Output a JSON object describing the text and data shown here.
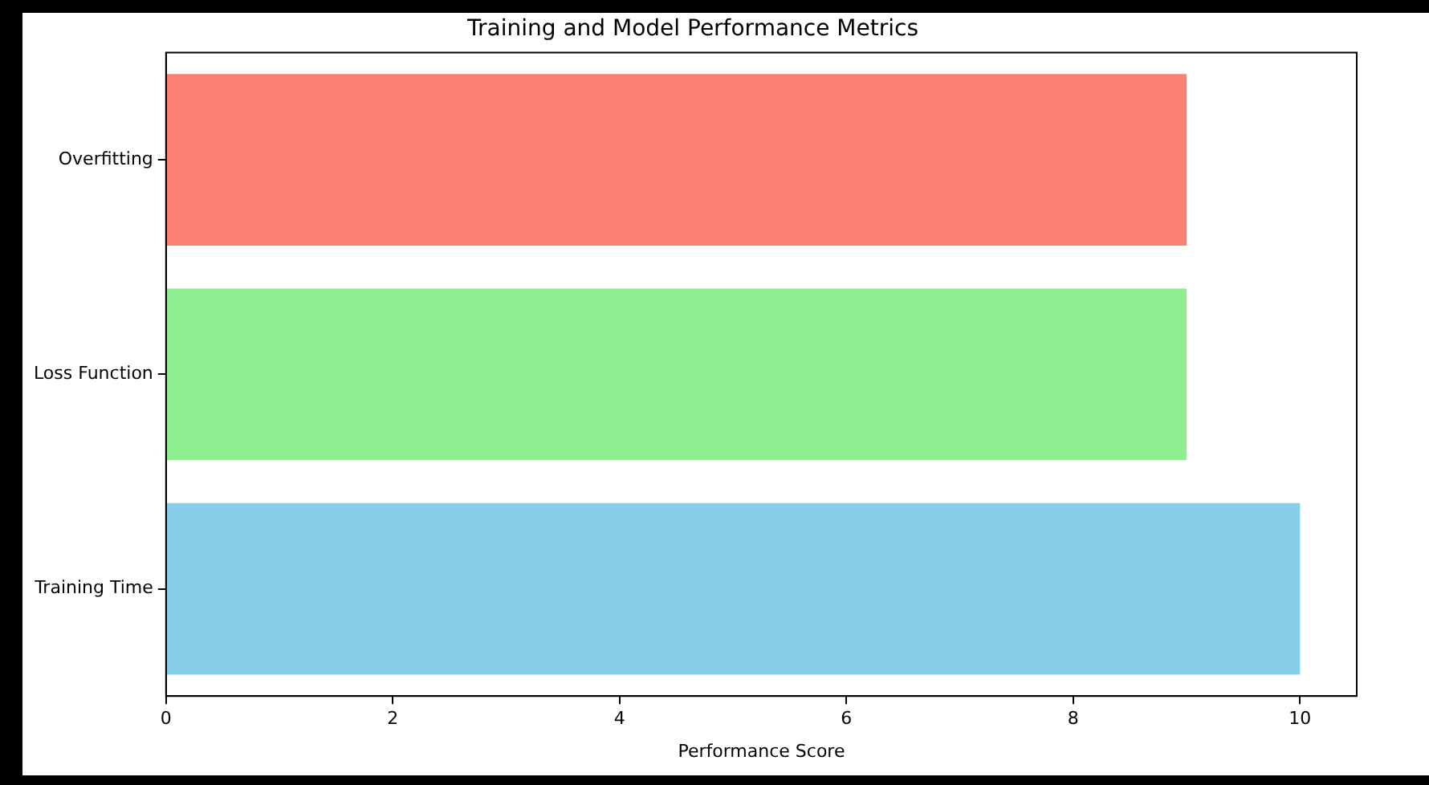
{
  "chart_data": {
    "type": "bar",
    "orientation": "horizontal",
    "title": "Training and Model Performance Metrics",
    "xlabel": "Performance Score",
    "categories": [
      "Overfitting",
      "Loss Function",
      "Training Time"
    ],
    "values": [
      9,
      9,
      10
    ],
    "colors": [
      "#fa8072",
      "#90ee90",
      "#87ceeb"
    ],
    "xlim": [
      0,
      10.5
    ],
    "xticks": [
      0,
      2,
      4,
      6,
      8,
      10
    ],
    "grid": false,
    "legend": false
  }
}
